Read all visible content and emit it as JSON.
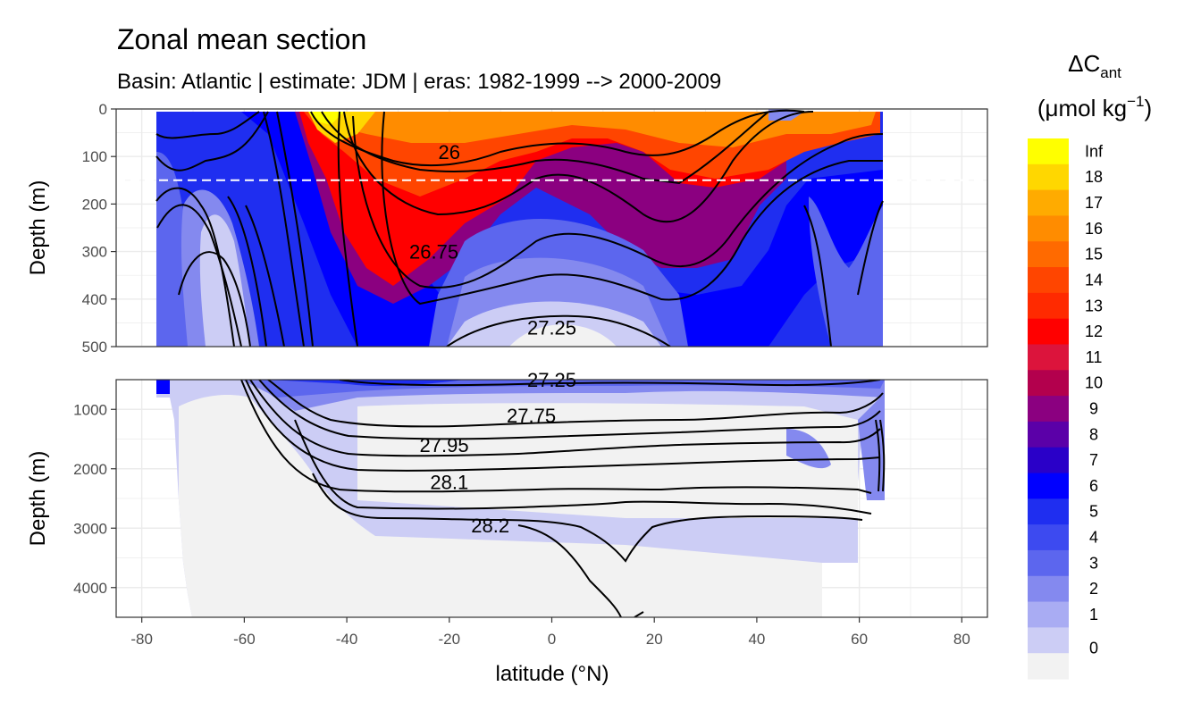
{
  "chart_data": {
    "type": "contour",
    "title": "Zonal mean section",
    "subtitle": "Basin: Atlantic | estimate: JDM  | eras: 1982-1999 --> 2000-2009",
    "xlabel": "latitude (°N)",
    "ylabel": "Depth (m)",
    "xlim": [
      -85,
      85
    ],
    "x_ticks": [
      -80,
      -60,
      -40,
      -20,
      0,
      20,
      40,
      60,
      80
    ],
    "x_tick_labels": [
      "-80",
      "-60",
      "-40",
      "-20",
      "0",
      "20",
      "40",
      "60",
      "80"
    ],
    "panels": [
      {
        "name": "upper",
        "ylim": [
          500,
          0
        ],
        "y_ticks": [
          0,
          100,
          200,
          300,
          400,
          500
        ],
        "y_tick_labels": [
          "0",
          "100",
          "200",
          "300",
          "400",
          "500"
        ],
        "dashed_line_depth": 150
      },
      {
        "name": "lower",
        "ylim": [
          4500,
          500
        ],
        "y_ticks": [
          1000,
          2000,
          3000,
          4000
        ],
        "y_tick_labels": [
          "1000",
          "2000",
          "3000",
          "4000"
        ]
      }
    ],
    "density_contour_labels": [
      {
        "text": "26",
        "lat": -20,
        "depth": 90,
        "panel": "upper"
      },
      {
        "text": "26.75",
        "lat": -23,
        "depth": 300,
        "panel": "upper"
      },
      {
        "text": "27.25",
        "lat": 0,
        "depth": 460,
        "panel": "upper"
      },
      {
        "text": "27.25",
        "lat": 0,
        "depth": 500,
        "panel": "lower"
      },
      {
        "text": "27.75",
        "lat": -4,
        "depth": 1100,
        "panel": "lower"
      },
      {
        "text": "27.95",
        "lat": -21,
        "depth": 1600,
        "panel": "lower"
      },
      {
        "text": "28.1",
        "lat": -20,
        "depth": 2220,
        "panel": "lower"
      },
      {
        "text": "28.2",
        "lat": -12,
        "depth": 2950,
        "panel": "lower"
      }
    ],
    "legend": {
      "title": "ΔC",
      "title_subscript": "ant",
      "unit": "(μmol kg",
      "unit_superscript": "−1",
      "unit_close": ")",
      "levels": [
        "Inf",
        "18",
        "17",
        "16",
        "15",
        "14",
        "13",
        "12",
        "11",
        "10",
        "9",
        "8",
        "7",
        "6",
        "5",
        "4",
        "3",
        "2",
        "1",
        "0"
      ],
      "colors": [
        "#ffff00",
        "#ffd700",
        "#ffab00",
        "#ff8c00",
        "#ff6a00",
        "#ff4500",
        "#ff2a00",
        "#ff0000",
        "#dc143c",
        "#b3004d",
        "#8b0080",
        "#5b00a8",
        "#2a00c8",
        "#0000ff",
        "#1f2ef0",
        "#3d4af0",
        "#5c66ee",
        "#8489ef",
        "#a9acf3",
        "#cccdf5",
        "#f2f2f2"
      ],
      "position": "right"
    },
    "delta_cant_sample": [
      {
        "lat": -75,
        "depth": 0,
        "value": 6.5
      },
      {
        "lat": -45,
        "depth": 0,
        "value": 18.5
      },
      {
        "lat": -30,
        "depth": 0,
        "value": 15.5
      },
      {
        "lat": -20,
        "depth": 200,
        "value": 12
      },
      {
        "lat": 0,
        "depth": 300,
        "value": 4
      },
      {
        "lat": 0,
        "depth": 450,
        "value": 1.5
      },
      {
        "lat": 20,
        "depth": 50,
        "value": 14
      },
      {
        "lat": 45,
        "depth": 20,
        "value": 16
      },
      {
        "lat": 55,
        "depth": 300,
        "value": 5
      },
      {
        "lat": -60,
        "depth": 300,
        "value": 2
      },
      {
        "lat": 0,
        "depth": 1500,
        "value": 0.5
      },
      {
        "lat": 0,
        "depth": 3500,
        "value": 0
      }
    ]
  }
}
